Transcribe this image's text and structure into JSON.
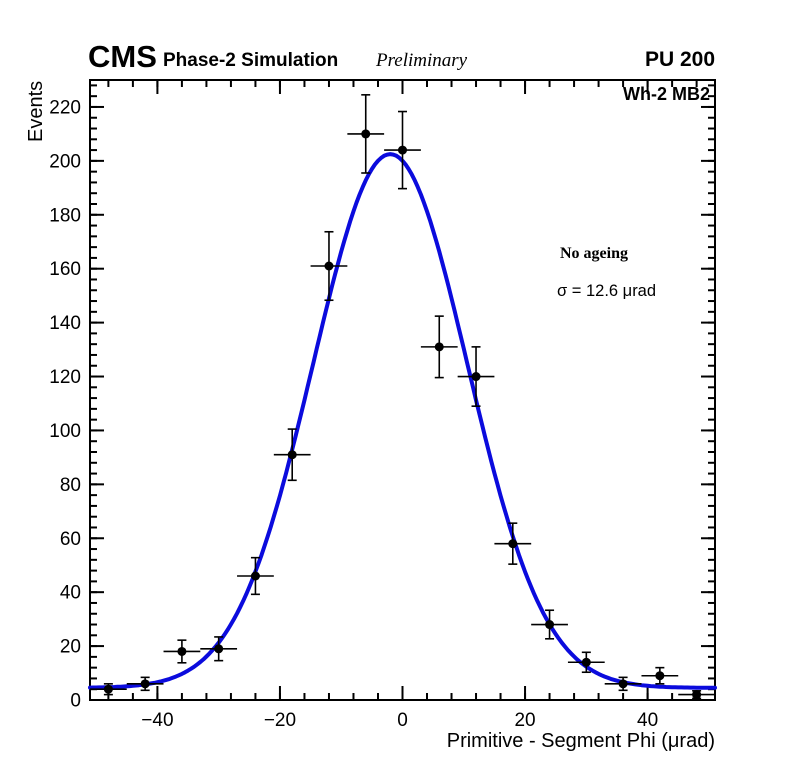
{
  "header": {
    "experiment": "CMS",
    "subtitle": "Phase-2 Simulation",
    "preliminary": "Preliminary",
    "pileup": "PU 200",
    "region": "Wh-2 MB2"
  },
  "annotations": {
    "ageing": "No ageing",
    "sigma_text": "σ = 12.6 μrad",
    "sigma_value_urad": 12.6
  },
  "chart_data": {
    "type": "scatter",
    "title": "",
    "xlabel": "Primitive - Segment Phi (μrad)",
    "ylabel": "Events",
    "xlim": [
      -51,
      51
    ],
    "ylim": [
      0,
      230
    ],
    "x_major_ticks": [
      -40,
      -20,
      0,
      20,
      40
    ],
    "x_minor_step": 4,
    "y_major_step": 20,
    "y_minor_step": 4,
    "grid": false,
    "legend": "none",
    "marker_color": "#000000",
    "fit": {
      "shape": "gaussian",
      "amplitude": 198,
      "mean": -2,
      "sigma": 12.6,
      "offset": 4.5,
      "color": "#0b0bdd"
    },
    "points": [
      {
        "x": -48,
        "y": 4,
        "xerr": 3,
        "yerr": 2.0
      },
      {
        "x": -42,
        "y": 6,
        "xerr": 3,
        "yerr": 2.4
      },
      {
        "x": -36,
        "y": 18,
        "xerr": 3,
        "yerr": 4.2
      },
      {
        "x": -30,
        "y": 19,
        "xerr": 3,
        "yerr": 4.4
      },
      {
        "x": -24,
        "y": 46,
        "xerr": 3,
        "yerr": 6.8
      },
      {
        "x": -18,
        "y": 91,
        "xerr": 3,
        "yerr": 9.5
      },
      {
        "x": -12,
        "y": 161,
        "xerr": 3,
        "yerr": 12.7
      },
      {
        "x": -6,
        "y": 210,
        "xerr": 3,
        "yerr": 14.5
      },
      {
        "x": 0,
        "y": 204,
        "xerr": 3,
        "yerr": 14.3
      },
      {
        "x": 6,
        "y": 131,
        "xerr": 3,
        "yerr": 11.4
      },
      {
        "x": 12,
        "y": 120,
        "xerr": 3,
        "yerr": 11.0
      },
      {
        "x": 18,
        "y": 58,
        "xerr": 3,
        "yerr": 7.6
      },
      {
        "x": 24,
        "y": 28,
        "xerr": 3,
        "yerr": 5.3
      },
      {
        "x": 30,
        "y": 14,
        "xerr": 3,
        "yerr": 3.7
      },
      {
        "x": 36,
        "y": 6,
        "xerr": 3,
        "yerr": 2.4
      },
      {
        "x": 42,
        "y": 9,
        "xerr": 3,
        "yerr": 3.0
      },
      {
        "x": 48,
        "y": 2,
        "xerr": 3,
        "yerr": 1.4
      }
    ]
  }
}
